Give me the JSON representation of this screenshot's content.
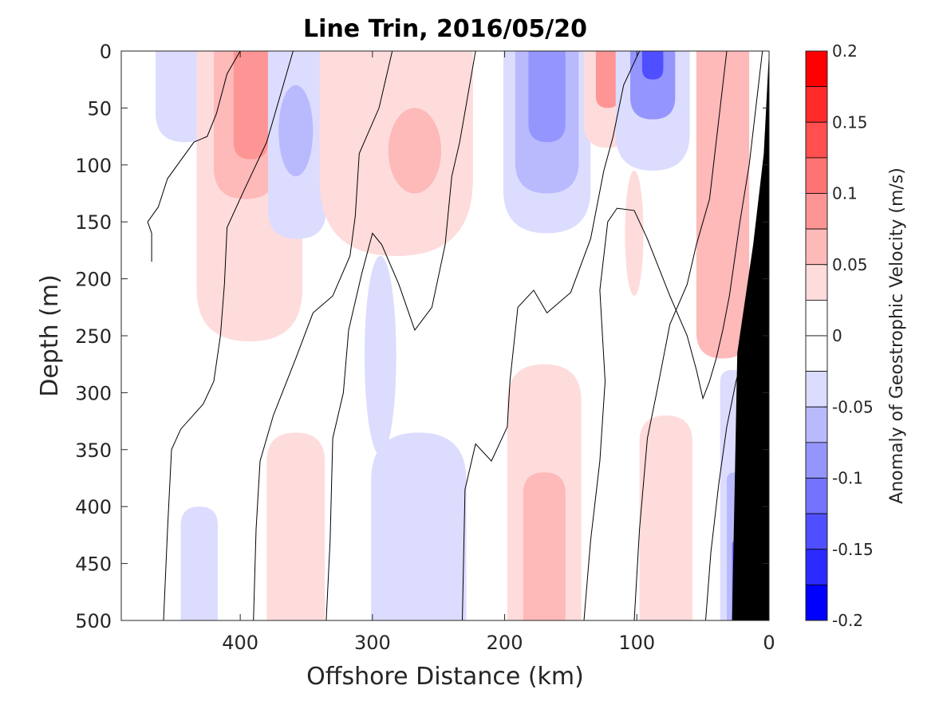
{
  "chart_data": {
    "type": "heatmap",
    "subtype": "filled-contour section",
    "title": "Line Trin, 2016/05/20",
    "xlabel": "Offshore Distance (km)",
    "ylabel": "Depth (m)",
    "xlim": [
      490,
      0
    ],
    "ylim": [
      0,
      500
    ],
    "x_reversed": true,
    "y_reversed": true,
    "xticks": [
      {
        "value": 400,
        "label": "400"
      },
      {
        "value": 300,
        "label": "300"
      },
      {
        "value": 200,
        "label": "200"
      },
      {
        "value": 100,
        "label": "100"
      },
      {
        "value": 0,
        "label": "0"
      }
    ],
    "yticks": [
      {
        "value": 0,
        "label": "0"
      },
      {
        "value": 50,
        "label": "50"
      },
      {
        "value": 100,
        "label": "100"
      },
      {
        "value": 150,
        "label": "150"
      },
      {
        "value": 200,
        "label": "200"
      },
      {
        "value": 250,
        "label": "250"
      },
      {
        "value": 300,
        "label": "300"
      },
      {
        "value": 350,
        "label": "350"
      },
      {
        "value": 400,
        "label": "400"
      },
      {
        "value": 450,
        "label": "450"
      },
      {
        "value": 500,
        "label": "500"
      }
    ],
    "grid": false,
    "colorbar": {
      "label": "Anomaly of Geostrophic Velocity (m/s)",
      "position": "right",
      "range": [
        -0.2,
        0.2
      ],
      "ticks": [
        {
          "value": 0.2,
          "label": "0.2"
        },
        {
          "value": 0.15,
          "label": "0.15"
        },
        {
          "value": 0.1,
          "label": "0.1"
        },
        {
          "value": 0.05,
          "label": "0.05"
        },
        {
          "value": 0,
          "label": "0"
        },
        {
          "value": -0.05,
          "label": "-0.05"
        },
        {
          "value": -0.1,
          "label": "-0.1"
        },
        {
          "value": -0.15,
          "label": "-0.15"
        },
        {
          "value": -0.2,
          "label": "-0.2"
        }
      ],
      "levels": [
        {
          "min": 0.175,
          "max": 0.2,
          "color": "#ff0000"
        },
        {
          "min": 0.15,
          "max": 0.175,
          "color": "#ff2b2b"
        },
        {
          "min": 0.125,
          "max": 0.15,
          "color": "#ff4f4f"
        },
        {
          "min": 0.1,
          "max": 0.125,
          "color": "#fe7373"
        },
        {
          "min": 0.075,
          "max": 0.1,
          "color": "#fe9595"
        },
        {
          "min": 0.05,
          "max": 0.075,
          "color": "#feb9b9"
        },
        {
          "min": 0.025,
          "max": 0.05,
          "color": "#fedcdc"
        },
        {
          "min": 0.0,
          "max": 0.025,
          "color": "#ffffff"
        },
        {
          "min": -0.025,
          "max": 0.0,
          "color": "#ffffff"
        },
        {
          "min": -0.05,
          "max": -0.025,
          "color": "#dcdcfe"
        },
        {
          "min": -0.075,
          "max": -0.05,
          "color": "#b9b9fe"
        },
        {
          "min": -0.1,
          "max": -0.075,
          "color": "#9595fe"
        },
        {
          "min": -0.125,
          "max": -0.1,
          "color": "#7373fe"
        },
        {
          "min": -0.15,
          "max": -0.125,
          "color": "#4f4fff"
        },
        {
          "min": -0.175,
          "max": -0.15,
          "color": "#2b2bff"
        },
        {
          "min": -0.2,
          "max": -0.175,
          "color": "#0000ff"
        }
      ]
    },
    "regions": [
      {
        "x_center": 442,
        "depth_top": 0,
        "depth_bottom": 80,
        "half_width": 22,
        "value": -0.03
      },
      {
        "x_center": 393,
        "depth_top": 0,
        "depth_bottom": 255,
        "half_width": 40,
        "value": 0.035
      },
      {
        "x_center": 396,
        "depth_top": 0,
        "depth_bottom": 130,
        "half_width": 24,
        "value": 0.06
      },
      {
        "x_center": 392,
        "depth_top": 0,
        "depth_bottom": 95,
        "half_width": 13,
        "value": 0.085
      },
      {
        "x_center": 357,
        "depth_top": 0,
        "depth_bottom": 165,
        "half_width": 22,
        "value": -0.035
      },
      {
        "x_center": 358,
        "depth_top": 30,
        "depth_bottom": 110,
        "half_width": 13,
        "value": -0.06
      },
      {
        "x_center": 282,
        "depth_top": 0,
        "depth_bottom": 180,
        "half_width": 58,
        "value": 0.03
      },
      {
        "x_center": 268,
        "depth_top": 50,
        "depth_bottom": 125,
        "half_width": 20,
        "value": 0.06
      },
      {
        "x_center": 168,
        "depth_top": 0,
        "depth_bottom": 160,
        "half_width": 33,
        "value": -0.04
      },
      {
        "x_center": 168,
        "depth_top": 0,
        "depth_bottom": 125,
        "half_width": 24,
        "value": -0.065
      },
      {
        "x_center": 168,
        "depth_top": 0,
        "depth_bottom": 80,
        "half_width": 14,
        "value": -0.09
      },
      {
        "x_center": 122,
        "depth_top": 0,
        "depth_bottom": 85,
        "half_width": 18,
        "value": 0.04
      },
      {
        "x_center": 122,
        "depth_top": 0,
        "depth_bottom": 50,
        "half_width": 9,
        "value": 0.075
      },
      {
        "x_center": 88,
        "depth_top": 0,
        "depth_bottom": 105,
        "half_width": 28,
        "value": -0.035
      },
      {
        "x_center": 88,
        "depth_top": 0,
        "depth_bottom": 60,
        "half_width": 17,
        "value": -0.08
      },
      {
        "x_center": 88,
        "depth_top": 0,
        "depth_bottom": 25,
        "half_width": 8,
        "value": -0.14
      },
      {
        "x_center": 102,
        "depth_top": 105,
        "depth_bottom": 215,
        "half_width": 7,
        "value": 0.03
      },
      {
        "x_center": 35,
        "depth_top": 0,
        "depth_bottom": 270,
        "half_width": 20,
        "value": 0.05
      },
      {
        "x_center": 294,
        "depth_top": 180,
        "depth_bottom": 355,
        "half_width": 12,
        "value": -0.03
      },
      {
        "x_center": 265,
        "depth_top": 335,
        "depth_bottom": 500,
        "half_width": 36,
        "value": -0.03
      },
      {
        "x_center": 358,
        "depth_top": 335,
        "depth_bottom": 500,
        "half_width": 22,
        "value": 0.03
      },
      {
        "x_center": 170,
        "depth_top": 275,
        "depth_bottom": 500,
        "half_width": 28,
        "value": 0.035
      },
      {
        "x_center": 170,
        "depth_top": 370,
        "depth_bottom": 500,
        "half_width": 16,
        "value": 0.065
      },
      {
        "x_center": 78,
        "depth_top": 320,
        "depth_bottom": 500,
        "half_width": 20,
        "value": 0.03
      },
      {
        "x_center": 431,
        "depth_top": 400,
        "depth_bottom": 500,
        "half_width": 14,
        "value": -0.03
      },
      {
        "x_center": 28,
        "depth_top": 280,
        "depth_bottom": 500,
        "half_width": 9,
        "value": -0.04
      },
      {
        "x_center": 26,
        "depth_top": 370,
        "depth_bottom": 500,
        "half_width": 6,
        "value": -0.075
      },
      {
        "x_center": 25,
        "depth_top": 430,
        "depth_bottom": 500,
        "half_width": 3,
        "value": -0.11
      }
    ],
    "zero_contours": [
      [
        [
          467,
          185
        ],
        [
          467,
          160
        ],
        [
          470,
          150
        ],
        [
          462,
          137
        ],
        [
          455,
          112
        ],
        [
          435,
          80
        ],
        [
          425,
          75
        ],
        [
          418,
          55
        ],
        [
          410,
          20
        ],
        [
          400,
          0
        ]
      ],
      [
        [
          458,
          500
        ],
        [
          455,
          420
        ],
        [
          452,
          350
        ],
        [
          445,
          332
        ],
        [
          428,
          310
        ],
        [
          420,
          290
        ],
        [
          415,
          250
        ],
        [
          412,
          205
        ],
        [
          410,
          155
        ],
        [
          397,
          122
        ],
        [
          380,
          80
        ],
        [
          370,
          40
        ],
        [
          360,
          0
        ]
      ],
      [
        [
          390,
          500
        ],
        [
          388,
          420
        ],
        [
          385,
          360
        ],
        [
          375,
          320
        ],
        [
          358,
          270
        ],
        [
          345,
          230
        ],
        [
          330,
          215
        ],
        [
          317,
          180
        ],
        [
          313,
          145
        ],
        [
          310,
          90
        ],
        [
          295,
          50
        ],
        [
          285,
          0
        ]
      ],
      [
        [
          335,
          500
        ],
        [
          332,
          430
        ],
        [
          330,
          340
        ],
        [
          322,
          300
        ],
        [
          318,
          245
        ],
        [
          308,
          195
        ],
        [
          300,
          160
        ],
        [
          293,
          170
        ],
        [
          280,
          205
        ],
        [
          268,
          245
        ],
        [
          255,
          225
        ],
        [
          245,
          170
        ],
        [
          240,
          110
        ],
        [
          234,
          80
        ],
        [
          228,
          40
        ],
        [
          222,
          0
        ]
      ],
      [
        [
          232,
          500
        ],
        [
          230,
          385
        ],
        [
          222,
          345
        ],
        [
          210,
          360
        ],
        [
          198,
          330
        ],
        [
          196,
          290
        ],
        [
          190,
          225
        ],
        [
          178,
          210
        ],
        [
          168,
          230
        ],
        [
          150,
          212
        ],
        [
          135,
          165
        ],
        [
          125,
          105
        ],
        [
          118,
          75
        ],
        [
          110,
          30
        ],
        [
          98,
          0
        ]
      ],
      [
        [
          140,
          500
        ],
        [
          135,
          430
        ],
        [
          128,
          360
        ],
        [
          124,
          290
        ],
        [
          128,
          210
        ],
        [
          122,
          150
        ],
        [
          115,
          138
        ],
        [
          102,
          140
        ],
        [
          92,
          165
        ],
        [
          75,
          215
        ],
        [
          62,
          250
        ],
        [
          55,
          280
        ],
        [
          50,
          305
        ],
        [
          45,
          290
        ],
        [
          40,
          270
        ],
        [
          35,
          245
        ],
        [
          30,
          215
        ],
        [
          22,
          150
        ],
        [
          15,
          100
        ],
        [
          10,
          50
        ],
        [
          5,
          0
        ]
      ],
      [
        [
          102,
          500
        ],
        [
          98,
          420
        ],
        [
          92,
          340
        ],
        [
          85,
          300
        ],
        [
          75,
          240
        ],
        [
          62,
          205
        ],
        [
          55,
          170
        ],
        [
          45,
          130
        ],
        [
          40,
          80
        ],
        [
          35,
          30
        ],
        [
          32,
          0
        ]
      ],
      [
        [
          48,
          500
        ],
        [
          44,
          440
        ],
        [
          38,
          380
        ],
        [
          32,
          330
        ],
        [
          25,
          290
        ],
        [
          18,
          260
        ],
        [
          8,
          235
        ],
        [
          2,
          200
        ],
        [
          0,
          150
        ]
      ]
    ],
    "bathymetry_mask": [
      [
        0,
        0
      ],
      [
        0,
        500
      ],
      [
        28,
        500
      ],
      [
        24,
        265
      ],
      [
        12,
        170
      ],
      [
        4,
        90
      ],
      [
        0,
        0
      ]
    ]
  }
}
